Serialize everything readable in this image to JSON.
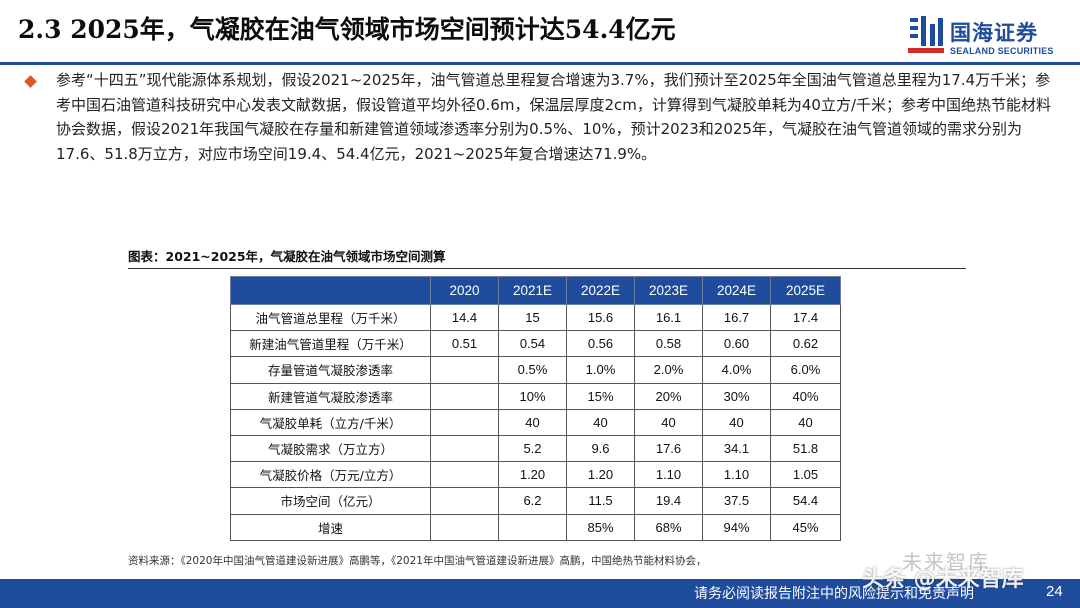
{
  "header": {
    "title": "2.3 2025年，气凝胶在油气领域市场空间预计达54.4亿元",
    "logo_cn": "国海证券",
    "logo_en": "SEALAND SECURITIES"
  },
  "body": {
    "paragraph": "参考“十四五”现代能源体系规划，假设2021~2025年，油气管道总里程复合增速为3.7%，我们预计至2025年全国油气管道总里程为17.4万千米；参考中国石油管道科技研究中心发表文献数据，假设管道平均外径0.6m，保温层厚度2cm，计算得到气凝胶单耗为40立方/千米；参考中国绝热节能材料协会数据，假设2021年我国气凝胶在存量和新建管道领域渗透率分别为0.5%、10%，预计2023和2025年，气凝胶在油气管道领域的需求分别为17.6、51.8万立方，对应市场空间19.4、54.4亿元，2021~2025年复合增速达71.9%。"
  },
  "table": {
    "caption": "图表：2021~2025年，气凝胶在油气领域市场空间测算",
    "headers": [
      "",
      "2020",
      "2021E",
      "2022E",
      "2023E",
      "2024E",
      "2025E"
    ],
    "rows": [
      {
        "label": "油气管道总里程（万千米）",
        "values": [
          "14.4",
          "15",
          "15.6",
          "16.1",
          "16.7",
          "17.4"
        ]
      },
      {
        "label": "新建油气管道里程（万千米）",
        "values": [
          "0.51",
          "0.54",
          "0.56",
          "0.58",
          "0.60",
          "0.62"
        ]
      },
      {
        "label": "存量管道气凝胶渗透率",
        "values": [
          "",
          "0.5%",
          "1.0%",
          "2.0%",
          "4.0%",
          "6.0%"
        ]
      },
      {
        "label": "新建管道气凝胶渗透率",
        "values": [
          "",
          "10%",
          "15%",
          "20%",
          "30%",
          "40%"
        ]
      },
      {
        "label": "气凝胶单耗（立方/千米）",
        "values": [
          "",
          "40",
          "40",
          "40",
          "40",
          "40"
        ]
      },
      {
        "label": "气凝胶需求（万立方）",
        "values": [
          "",
          "5.2",
          "9.6",
          "17.6",
          "34.1",
          "51.8"
        ]
      },
      {
        "label": "气凝胶价格（万元/立方）",
        "values": [
          "",
          "1.20",
          "1.20",
          "1.10",
          "1.10",
          "1.05"
        ]
      },
      {
        "label": "市场空间（亿元）",
        "values": [
          "",
          "6.2",
          "11.5",
          "19.4",
          "37.5",
          "54.4"
        ]
      },
      {
        "label": "增速",
        "values": [
          "",
          "",
          "85%",
          "68%",
          "94%",
          "45%"
        ]
      }
    ],
    "source": "资料来源：《2020年中国油气管道建设新进展》高鹏等，《2021年中国油气管道建设新进展》高鹏，中国绝热节能材料协会，"
  },
  "footer": {
    "disclaimer": "请务必阅读报告附注中的风险提示和免责声明",
    "page_number": "24"
  },
  "watermark": {
    "top": "未来智库",
    "bottom": "头条 @未来智库"
  },
  "colors": {
    "brand_blue": "#1f4c9c",
    "bullet_orange": "#e0581e"
  }
}
